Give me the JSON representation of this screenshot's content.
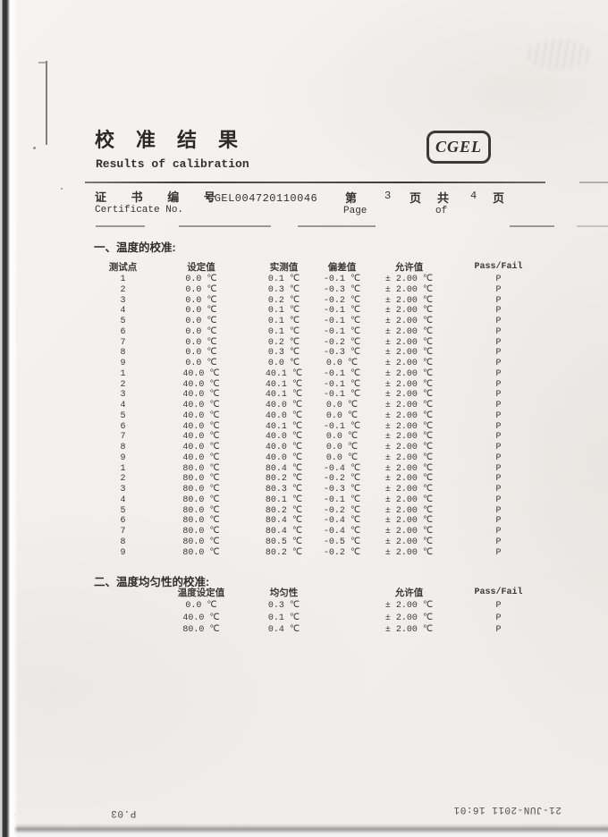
{
  "colors": {
    "paper": "#f2f0ed",
    "ink": "#35332f",
    "fax_ink": "#4f4f4f"
  },
  "header": {
    "title_zh": "校准结果",
    "title_en": "Results of calibration",
    "logo": "CGEL"
  },
  "certificate": {
    "label_zh": "证 书 编 号",
    "label_en": "Certificate No.",
    "number": "CGEL004720110046",
    "page": {
      "zh_di": "第",
      "number": "3",
      "zh_ye1": "页",
      "zh_gong": "共",
      "total": "4",
      "zh_ye2": "页",
      "en_page": "Page",
      "en_of": "of"
    }
  },
  "section1": {
    "title": "一、温度的校准:",
    "columns": [
      "测试点",
      "设定值",
      "实测值",
      "偏差值",
      "允许值",
      "Pass/Fail"
    ],
    "rows": [
      {
        "point": "1",
        "set": "0.0 ℃",
        "measured": "0.1 ℃",
        "deviation": "-0.1 ℃",
        "allowed": "± 2.00 ℃",
        "result": "P"
      },
      {
        "point": "2",
        "set": "0.0 ℃",
        "measured": "0.3 ℃",
        "deviation": "-0.3 ℃",
        "allowed": "± 2.00 ℃",
        "result": "P"
      },
      {
        "point": "3",
        "set": "0.0 ℃",
        "measured": "0.2 ℃",
        "deviation": "-0.2 ℃",
        "allowed": "± 2.00 ℃",
        "result": "P"
      },
      {
        "point": "4",
        "set": "0.0 ℃",
        "measured": "0.1 ℃",
        "deviation": "-0.1 ℃",
        "allowed": "± 2.00 ℃",
        "result": "P"
      },
      {
        "point": "5",
        "set": "0.0 ℃",
        "measured": "0.1 ℃",
        "deviation": "-0.1 ℃",
        "allowed": "± 2.00 ℃",
        "result": "P"
      },
      {
        "point": "6",
        "set": "0.0 ℃",
        "measured": "0.1 ℃",
        "deviation": "-0.1 ℃",
        "allowed": "± 2.00 ℃",
        "result": "P"
      },
      {
        "point": "7",
        "set": "0.0 ℃",
        "measured": "0.2 ℃",
        "deviation": "-0.2 ℃",
        "allowed": "± 2.00 ℃",
        "result": "P"
      },
      {
        "point": "8",
        "set": "0.0 ℃",
        "measured": "0.3 ℃",
        "deviation": "-0.3 ℃",
        "allowed": "± 2.00 ℃",
        "result": "P"
      },
      {
        "point": "9",
        "set": "0.0 ℃",
        "measured": "0.0 ℃",
        "deviation": "0.0 ℃",
        "allowed": "± 2.00 ℃",
        "result": "P"
      },
      {
        "point": "1",
        "set": "40.0 ℃",
        "measured": "40.1 ℃",
        "deviation": "-0.1 ℃",
        "allowed": "± 2.00 ℃",
        "result": "P"
      },
      {
        "point": "2",
        "set": "40.0 ℃",
        "measured": "40.1 ℃",
        "deviation": "-0.1 ℃",
        "allowed": "± 2.00 ℃",
        "result": "P"
      },
      {
        "point": "3",
        "set": "40.0 ℃",
        "measured": "40.1 ℃",
        "deviation": "-0.1 ℃",
        "allowed": "± 2.00 ℃",
        "result": "P"
      },
      {
        "point": "4",
        "set": "40.0 ℃",
        "measured": "40.0 ℃",
        "deviation": "0.0 ℃",
        "allowed": "± 2.00 ℃",
        "result": "P"
      },
      {
        "point": "5",
        "set": "40.0 ℃",
        "measured": "40.0 ℃",
        "deviation": "0.0 ℃",
        "allowed": "± 2.00 ℃",
        "result": "P"
      },
      {
        "point": "6",
        "set": "40.0 ℃",
        "measured": "40.1 ℃",
        "deviation": "-0.1 ℃",
        "allowed": "± 2.00 ℃",
        "result": "P"
      },
      {
        "point": "7",
        "set": "40.0 ℃",
        "measured": "40.0 ℃",
        "deviation": "0.0 ℃",
        "allowed": "± 2.00 ℃",
        "result": "P"
      },
      {
        "point": "8",
        "set": "40.0 ℃",
        "measured": "40.0 ℃",
        "deviation": "0.0 ℃",
        "allowed": "± 2.00 ℃",
        "result": "P"
      },
      {
        "point": "9",
        "set": "40.0 ℃",
        "measured": "40.0 ℃",
        "deviation": "0.0 ℃",
        "allowed": "± 2.00 ℃",
        "result": "P"
      },
      {
        "point": "1",
        "set": "80.0 ℃",
        "measured": "80.4 ℃",
        "deviation": "-0.4 ℃",
        "allowed": "± 2.00 ℃",
        "result": "P"
      },
      {
        "point": "2",
        "set": "80.0 ℃",
        "measured": "80.2 ℃",
        "deviation": "-0.2 ℃",
        "allowed": "± 2.00 ℃",
        "result": "P"
      },
      {
        "point": "3",
        "set": "80.0 ℃",
        "measured": "80.3 ℃",
        "deviation": "-0.3 ℃",
        "allowed": "± 2.00 ℃",
        "result": "P"
      },
      {
        "point": "4",
        "set": "80.0 ℃",
        "measured": "80.1 ℃",
        "deviation": "-0.1 ℃",
        "allowed": "± 2.00 ℃",
        "result": "P"
      },
      {
        "point": "5",
        "set": "80.0 ℃",
        "measured": "80.2 ℃",
        "deviation": "-0.2 ℃",
        "allowed": "± 2.00 ℃",
        "result": "P"
      },
      {
        "point": "6",
        "set": "80.0 ℃",
        "measured": "80.4 ℃",
        "deviation": "-0.4 ℃",
        "allowed": "± 2.00 ℃",
        "result": "P"
      },
      {
        "point": "7",
        "set": "80.0 ℃",
        "measured": "80.4 ℃",
        "deviation": "-0.4 ℃",
        "allowed": "± 2.00 ℃",
        "result": "P"
      },
      {
        "point": "8",
        "set": "80.0 ℃",
        "measured": "80.5 ℃",
        "deviation": "-0.5 ℃",
        "allowed": "± 2.00 ℃",
        "result": "P"
      },
      {
        "point": "9",
        "set": "80.0 ℃",
        "measured": "80.2 ℃",
        "deviation": "-0.2 ℃",
        "allowed": "± 2.00 ℃",
        "result": "P"
      }
    ]
  },
  "section2": {
    "title": "二、温度均匀性的校准:",
    "columns": [
      "温度设定值",
      "均匀性",
      "允许值",
      "Pass/Fail"
    ],
    "rows": [
      {
        "set": "0.0 ℃",
        "uniformity": "0.3 ℃",
        "allowed": "± 2.00 ℃",
        "result": "P"
      },
      {
        "set": "40.0 ℃",
        "uniformity": "0.1 ℃",
        "allowed": "± 2.00 ℃",
        "result": "P"
      },
      {
        "set": "80.0 ℃",
        "uniformity": "0.4 ℃",
        "allowed": "± 2.00 ℃",
        "result": "P"
      }
    ]
  },
  "fax": {
    "page": "P.03",
    "timestamp": "21-JUN-2011 16:01"
  }
}
